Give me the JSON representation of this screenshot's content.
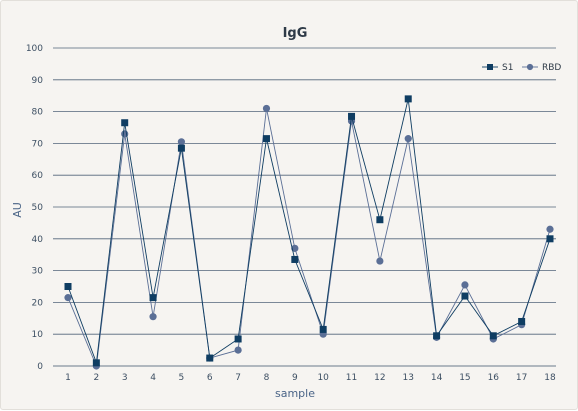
{
  "chart_data": {
    "type": "line",
    "title": "IgG",
    "xlabel": "sample",
    "ylabel": "AU",
    "ylim": [
      0,
      100
    ],
    "yticks": [
      0,
      10,
      20,
      30,
      40,
      50,
      60,
      70,
      80,
      90,
      100
    ],
    "x": [
      "1",
      "2",
      "3",
      "4",
      "5",
      "6",
      "7",
      "8",
      "9",
      "10",
      "11",
      "12",
      "13",
      "14",
      "15",
      "16",
      "17",
      "18"
    ],
    "grid": true,
    "legend_position": "top-right",
    "series": [
      {
        "name": "S1",
        "marker": "square",
        "color": "#0f3d62",
        "values": [
          25,
          1,
          76.5,
          21.5,
          68.5,
          2.5,
          8.5,
          71.5,
          33.5,
          11.5,
          78.5,
          46,
          84,
          9.5,
          22,
          9.5,
          14,
          40
        ]
      },
      {
        "name": "RBD",
        "marker": "circle",
        "color": "#5b6f96",
        "values": [
          21.5,
          0,
          73,
          15.5,
          70.5,
          2.5,
          5,
          81,
          37,
          10,
          77,
          33,
          71.5,
          9,
          25.5,
          8.5,
          13,
          43
        ]
      }
    ]
  }
}
